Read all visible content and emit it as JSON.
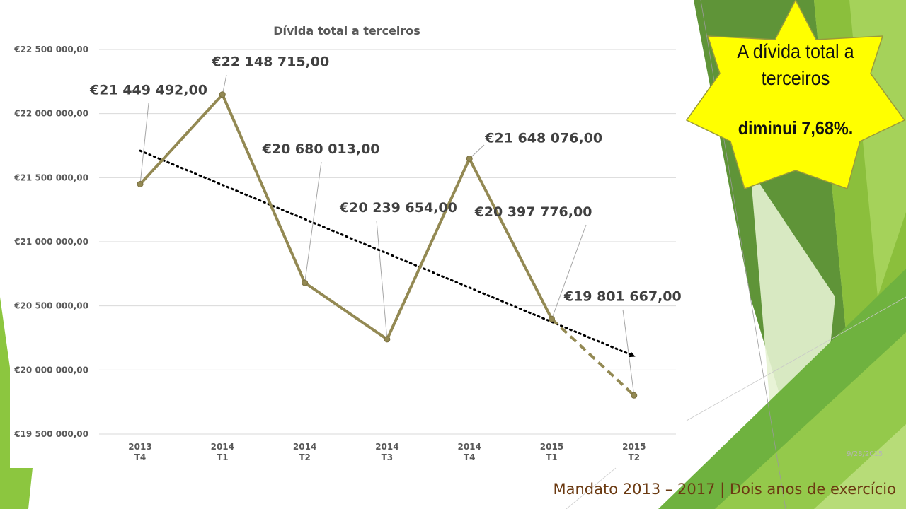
{
  "slide": {
    "callout_line1": "A dívida total a terceiros",
    "callout_line2": "diminui 7,68%.",
    "date": "9/28/2015",
    "footer": "Mandato 2013 – 2017 | Dois anos de exercício"
  },
  "colors": {
    "series": "#938953",
    "trend": "#000000",
    "star_fill": "#ffff00",
    "footer": "#6b3a12",
    "green_light": "#92d050",
    "green_dark": "#4f8a2b"
  },
  "chart_data": {
    "type": "line",
    "title": "Dívida total a terceiros",
    "categories": [
      "2013\nT4",
      "2014\nT1",
      "2014\nT2",
      "2014\nT3",
      "2014\nT4",
      "2015\nT1",
      "2015\nT2"
    ],
    "series": [
      {
        "values": [
          21449492.0,
          22148715.0,
          20680013.0,
          20239654.0,
          21648076.0,
          20397776.0,
          19801667.0
        ],
        "labels": [
          "€21 449 492,00",
          "€22 148 715,00",
          "€20 680 013,00",
          "€20 239 654,00",
          "€21 648 076,00",
          "€20 397 776,00",
          "€19 801 667,00"
        ],
        "dashed_last_segment": true
      }
    ],
    "trendline": {
      "type": "linear",
      "dotted": true,
      "arrow": true
    },
    "yticks": [
      "€22 500 000,00",
      "€22 000 000,00",
      "€21 500 000,00",
      "€21 000 000,00",
      "€20 500 000,00",
      "€20 000 000,00",
      "€19 500 000,00"
    ],
    "ylim": [
      19500000,
      22500000
    ],
    "grid": true,
    "legend": "none"
  }
}
